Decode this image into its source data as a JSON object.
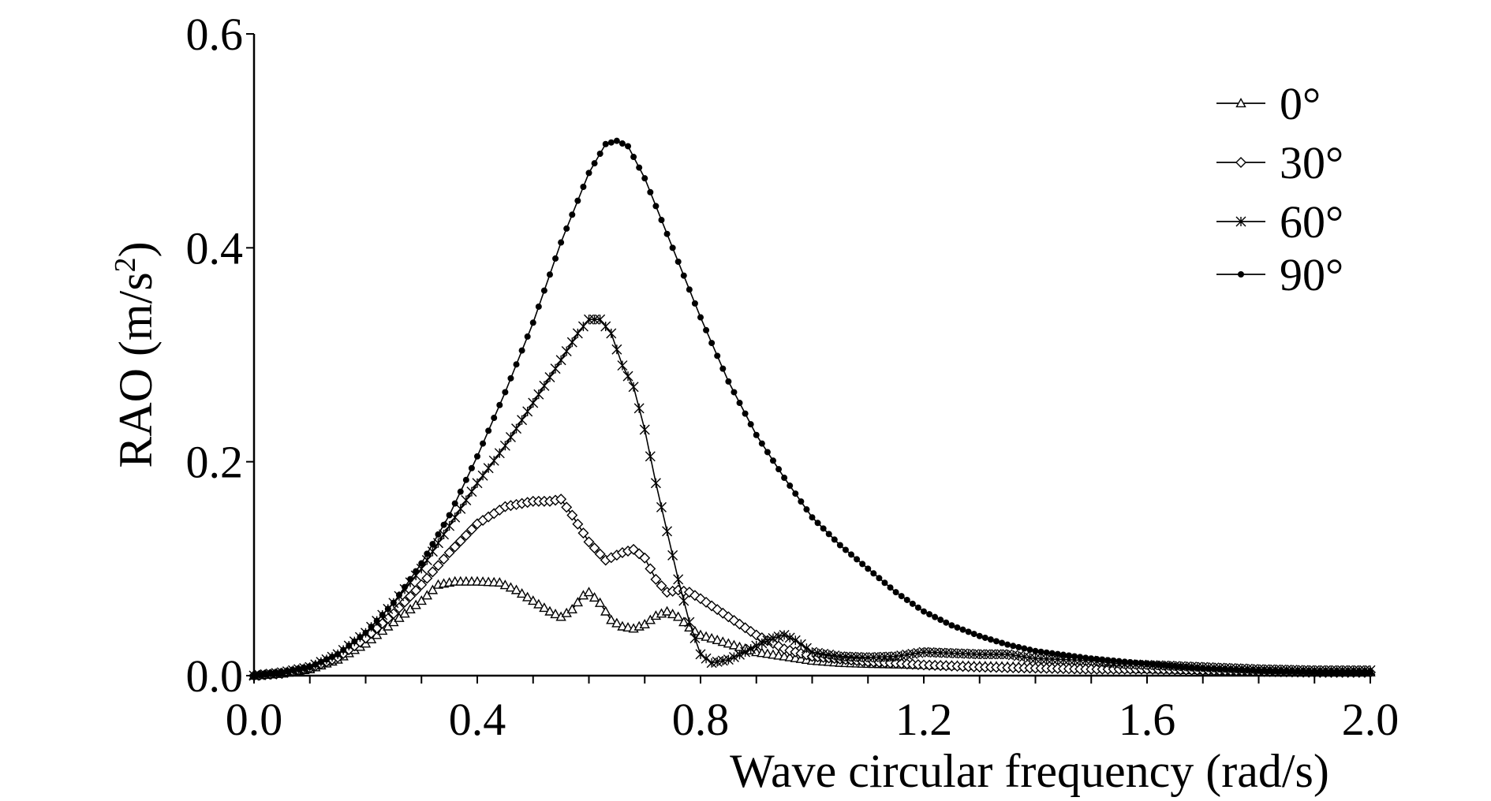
{
  "chart_data": {
    "type": "line",
    "title": "",
    "xlabel": "Wave circular frequency (rad/s)",
    "ylabel_main": "RAO (m/s",
    "ylabel_sup": "2",
    "ylabel_close": ")",
    "xlim": [
      0.0,
      2.0
    ],
    "ylim": [
      0.0,
      0.6
    ],
    "x_ticks": [
      0.0,
      0.4,
      0.8,
      1.2,
      1.6,
      2.0
    ],
    "x_tick_labels": [
      "0.0",
      "0.4",
      "0.8",
      "1.2",
      "1.6",
      "2.0"
    ],
    "x_minor_step": 0.1,
    "y_ticks": [
      0.0,
      0.2,
      0.4,
      0.6
    ],
    "y_tick_labels": [
      "0.0",
      "0.2",
      "0.4",
      "0.6"
    ],
    "grid": false,
    "legend_position": "top-right",
    "series": [
      {
        "name": "0°",
        "marker": "triangle",
        "points": [
          [
            0.0,
            0.0
          ],
          [
            0.05,
            0.002
          ],
          [
            0.1,
            0.006
          ],
          [
            0.15,
            0.015
          ],
          [
            0.2,
            0.03
          ],
          [
            0.25,
            0.05
          ],
          [
            0.3,
            0.07
          ],
          [
            0.33,
            0.085
          ],
          [
            0.36,
            0.088
          ],
          [
            0.4,
            0.088
          ],
          [
            0.44,
            0.087
          ],
          [
            0.47,
            0.08
          ],
          [
            0.5,
            0.07
          ],
          [
            0.53,
            0.06
          ],
          [
            0.55,
            0.055
          ],
          [
            0.57,
            0.062
          ],
          [
            0.59,
            0.075
          ],
          [
            0.6,
            0.078
          ],
          [
            0.62,
            0.068
          ],
          [
            0.64,
            0.052
          ],
          [
            0.66,
            0.046
          ],
          [
            0.68,
            0.044
          ],
          [
            0.7,
            0.048
          ],
          [
            0.72,
            0.056
          ],
          [
            0.74,
            0.06
          ],
          [
            0.76,
            0.055
          ],
          [
            0.78,
            0.045
          ],
          [
            0.8,
            0.038
          ],
          [
            0.85,
            0.03
          ],
          [
            0.9,
            0.022
          ],
          [
            0.95,
            0.018
          ],
          [
            1.0,
            0.014
          ],
          [
            1.05,
            0.012
          ],
          [
            1.1,
            0.011
          ],
          [
            1.2,
            0.01
          ],
          [
            1.3,
            0.009
          ],
          [
            1.4,
            0.008
          ],
          [
            1.5,
            0.007
          ],
          [
            1.6,
            0.006
          ],
          [
            1.7,
            0.005
          ],
          [
            1.8,
            0.004
          ],
          [
            1.9,
            0.003
          ],
          [
            2.0,
            0.003
          ]
        ]
      },
      {
        "name": "30°",
        "marker": "diamond",
        "points": [
          [
            0.0,
            0.0
          ],
          [
            0.05,
            0.002
          ],
          [
            0.1,
            0.007
          ],
          [
            0.15,
            0.017
          ],
          [
            0.2,
            0.035
          ],
          [
            0.25,
            0.058
          ],
          [
            0.3,
            0.085
          ],
          [
            0.35,
            0.115
          ],
          [
            0.4,
            0.142
          ],
          [
            0.45,
            0.158
          ],
          [
            0.5,
            0.163
          ],
          [
            0.53,
            0.163
          ],
          [
            0.55,
            0.165
          ],
          [
            0.57,
            0.15
          ],
          [
            0.6,
            0.125
          ],
          [
            0.63,
            0.108
          ],
          [
            0.66,
            0.115
          ],
          [
            0.68,
            0.118
          ],
          [
            0.7,
            0.11
          ],
          [
            0.72,
            0.09
          ],
          [
            0.74,
            0.078
          ],
          [
            0.76,
            0.08
          ],
          [
            0.78,
            0.078
          ],
          [
            0.8,
            0.072
          ],
          [
            0.85,
            0.055
          ],
          [
            0.9,
            0.038
          ],
          [
            0.95,
            0.025
          ],
          [
            1.0,
            0.018
          ],
          [
            1.1,
            0.013
          ],
          [
            1.2,
            0.01
          ],
          [
            1.3,
            0.008
          ],
          [
            1.4,
            0.007
          ],
          [
            1.5,
            0.006
          ],
          [
            1.6,
            0.006
          ],
          [
            1.7,
            0.005
          ],
          [
            1.8,
            0.004
          ],
          [
            1.9,
            0.003
          ],
          [
            2.0,
            0.003
          ]
        ]
      },
      {
        "name": "60°",
        "marker": "star",
        "points": [
          [
            0.0,
            0.0
          ],
          [
            0.05,
            0.003
          ],
          [
            0.1,
            0.008
          ],
          [
            0.15,
            0.02
          ],
          [
            0.2,
            0.04
          ],
          [
            0.25,
            0.068
          ],
          [
            0.3,
            0.1
          ],
          [
            0.35,
            0.14
          ],
          [
            0.4,
            0.18
          ],
          [
            0.45,
            0.215
          ],
          [
            0.5,
            0.255
          ],
          [
            0.55,
            0.295
          ],
          [
            0.58,
            0.32
          ],
          [
            0.6,
            0.333
          ],
          [
            0.62,
            0.333
          ],
          [
            0.64,
            0.32
          ],
          [
            0.66,
            0.29
          ],
          [
            0.68,
            0.27
          ],
          [
            0.7,
            0.23
          ],
          [
            0.72,
            0.18
          ],
          [
            0.74,
            0.135
          ],
          [
            0.76,
            0.09
          ],
          [
            0.78,
            0.05
          ],
          [
            0.8,
            0.02
          ],
          [
            0.82,
            0.012
          ],
          [
            0.85,
            0.015
          ],
          [
            0.88,
            0.022
          ],
          [
            0.9,
            0.028
          ],
          [
            0.93,
            0.035
          ],
          [
            0.95,
            0.038
          ],
          [
            0.97,
            0.033
          ],
          [
            1.0,
            0.022
          ],
          [
            1.05,
            0.018
          ],
          [
            1.1,
            0.017
          ],
          [
            1.15,
            0.018
          ],
          [
            1.2,
            0.022
          ],
          [
            1.25,
            0.021
          ],
          [
            1.3,
            0.02
          ],
          [
            1.35,
            0.02
          ],
          [
            1.4,
            0.016
          ],
          [
            1.45,
            0.015
          ],
          [
            1.5,
            0.014
          ],
          [
            1.55,
            0.011
          ],
          [
            1.6,
            0.01
          ],
          [
            1.7,
            0.008
          ],
          [
            1.8,
            0.006
          ],
          [
            1.9,
            0.005
          ],
          [
            2.0,
            0.005
          ]
        ]
      },
      {
        "name": "90°",
        "marker": "dot",
        "points": [
          [
            0.0,
            0.0
          ],
          [
            0.05,
            0.003
          ],
          [
            0.1,
            0.008
          ],
          [
            0.15,
            0.02
          ],
          [
            0.2,
            0.04
          ],
          [
            0.25,
            0.068
          ],
          [
            0.3,
            0.105
          ],
          [
            0.35,
            0.15
          ],
          [
            0.4,
            0.205
          ],
          [
            0.45,
            0.265
          ],
          [
            0.5,
            0.33
          ],
          [
            0.55,
            0.405
          ],
          [
            0.6,
            0.47
          ],
          [
            0.63,
            0.497
          ],
          [
            0.65,
            0.5
          ],
          [
            0.67,
            0.495
          ],
          [
            0.7,
            0.465
          ],
          [
            0.75,
            0.4
          ],
          [
            0.8,
            0.335
          ],
          [
            0.85,
            0.275
          ],
          [
            0.9,
            0.225
          ],
          [
            0.95,
            0.185
          ],
          [
            1.0,
            0.148
          ],
          [
            1.05,
            0.122
          ],
          [
            1.1,
            0.1
          ],
          [
            1.15,
            0.078
          ],
          [
            1.2,
            0.06
          ],
          [
            1.25,
            0.047
          ],
          [
            1.3,
            0.037
          ],
          [
            1.35,
            0.029
          ],
          [
            1.4,
            0.023
          ],
          [
            1.5,
            0.016
          ],
          [
            1.6,
            0.011
          ],
          [
            1.7,
            0.007
          ],
          [
            1.8,
            0.005
          ],
          [
            1.9,
            0.004
          ],
          [
            2.0,
            0.003
          ]
        ]
      }
    ]
  }
}
